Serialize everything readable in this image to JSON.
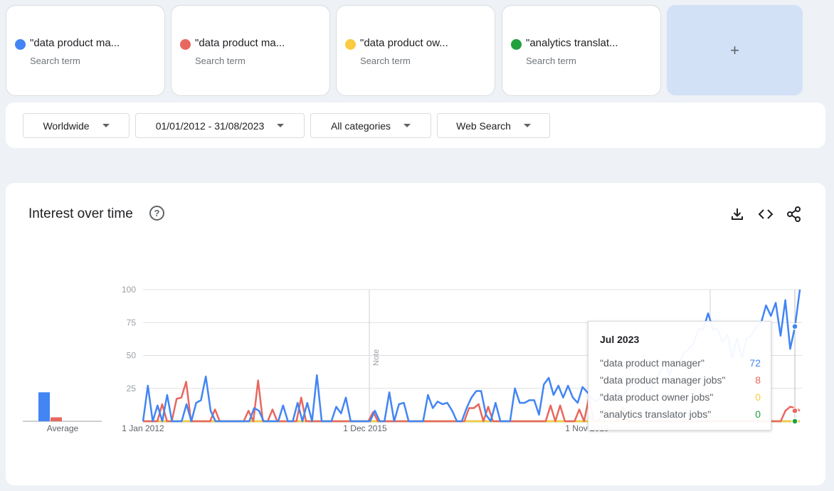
{
  "terms": [
    {
      "name": "\"data product ma...",
      "sub": "Search term",
      "color": "#4285f4"
    },
    {
      "name": "\"data product ma...",
      "sub": "Search term",
      "color": "#e8675f"
    },
    {
      "name": "\"data product ow...",
      "sub": "Search term",
      "color": "#f9cb40"
    },
    {
      "name": "\"analytics translat...",
      "sub": "Search term",
      "color": "#1fa13e"
    }
  ],
  "add_term": {
    "label": "+"
  },
  "filters": {
    "region": "Worldwide",
    "date_range": "01/01/2012 - 31/08/2023",
    "category": "All categories",
    "search_type": "Web Search"
  },
  "panel": {
    "title": "Interest over time",
    "help_icon": "help-circle-icon",
    "toolbar_icons": [
      "download-icon",
      "embed-code-icon",
      "share-icon"
    ]
  },
  "tooltip": {
    "title": "Jul 2023",
    "rows": [
      {
        "label": "\"data product manager\"",
        "value": "72",
        "color": "#4285f4"
      },
      {
        "label": "\"data product manager jobs\"",
        "value": "8",
        "color": "#e8675f"
      },
      {
        "label": "\"data product owner jobs\"",
        "value": "0",
        "color": "#f9cb40"
      },
      {
        "label": "\"analytics translator jobs\"",
        "value": "0",
        "color": "#1fa13e"
      }
    ]
  },
  "chart_data": {
    "type": "line",
    "y_ticks": [
      "100",
      "75",
      "50",
      "25"
    ],
    "ylim": [
      0,
      100
    ],
    "x_tick_labels": [
      "1 Jan 2012",
      "1 Dec 2015",
      "1 Nov 2019"
    ],
    "note_label": "Note",
    "average_label": "Average",
    "averages": [
      22,
      3,
      0,
      0
    ],
    "series": [
      {
        "name": "\"data product manager\"",
        "color": "#4285f4",
        "values": [
          0,
          27,
          0,
          12,
          0,
          20,
          0,
          0,
          0,
          13,
          0,
          14,
          16,
          34,
          8,
          0,
          0,
          0,
          0,
          0,
          0,
          0,
          0,
          10,
          8,
          0,
          0,
          0,
          0,
          12,
          0,
          0,
          14,
          0,
          14,
          0,
          35,
          0,
          0,
          0,
          11,
          6,
          18,
          0,
          0,
          0,
          0,
          0,
          8,
          0,
          0,
          22,
          0,
          13,
          14,
          0,
          0,
          0,
          0,
          20,
          10,
          15,
          13,
          14,
          8,
          0,
          0,
          10,
          18,
          23,
          23,
          5,
          0,
          14,
          0,
          0,
          0,
          25,
          14,
          14,
          16,
          16,
          5,
          28,
          33,
          20,
          27,
          18,
          27,
          18,
          14,
          26,
          22,
          17,
          15,
          20,
          15,
          17,
          23,
          17,
          23,
          28,
          28,
          30,
          28,
          23,
          32,
          36,
          45,
          35,
          45,
          44,
          52,
          55,
          59,
          70,
          70,
          82,
          70,
          70,
          60,
          66,
          48,
          63,
          48,
          63,
          65,
          72,
          75,
          88,
          80,
          90,
          65,
          92,
          55,
          72,
          100
        ]
      },
      {
        "name": "\"data product manager jobs\"",
        "color": "#e8675f",
        "values": [
          0,
          0,
          0,
          0,
          13,
          0,
          0,
          17,
          18,
          30,
          0,
          0,
          0,
          0,
          0,
          9,
          0,
          0,
          0,
          0,
          0,
          0,
          8,
          0,
          31,
          0,
          0,
          9,
          0,
          0,
          0,
          0,
          0,
          18,
          0,
          0,
          0,
          0,
          0,
          0,
          0,
          0,
          0,
          0,
          0,
          0,
          0,
          0,
          7,
          0,
          0,
          0,
          0,
          0,
          0,
          0,
          0,
          0,
          0,
          0,
          0,
          0,
          0,
          0,
          0,
          0,
          0,
          0,
          10,
          10,
          13,
          0,
          11,
          0,
          0,
          0,
          0,
          0,
          0,
          0,
          0,
          0,
          0,
          0,
          0,
          12,
          0,
          12,
          0,
          0,
          0,
          9,
          0,
          18,
          0,
          0,
          8,
          8,
          7,
          0,
          11,
          0,
          0,
          0,
          0,
          0,
          0,
          0,
          0,
          0,
          0,
          0,
          0,
          0,
          0,
          0,
          0,
          0,
          0,
          0,
          0,
          0,
          0,
          0,
          0,
          0,
          0,
          0,
          0,
          0,
          0,
          0,
          0,
          0,
          8,
          11,
          10,
          8
        ]
      },
      {
        "name": "\"data product owner jobs\"",
        "color": "#f9cb40",
        "values": [
          0,
          0
        ]
      },
      {
        "name": "\"analytics translator jobs\"",
        "color": "#1fa13e",
        "values": [
          0,
          0
        ]
      }
    ]
  }
}
